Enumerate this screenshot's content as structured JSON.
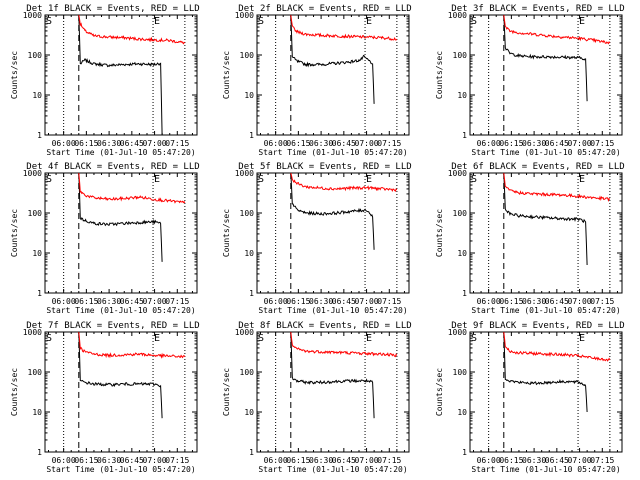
{
  "figure": {
    "panels": [
      {
        "title": "Det 1f BLACK = Events, RED = LLD"
      },
      {
        "title": "Det 2f BLACK = Events, RED = LLD"
      },
      {
        "title": "Det 3f BLACK = Events, RED = LLD"
      },
      {
        "title": "Det 4f BLACK = Events, RED = LLD"
      },
      {
        "title": "Det 5f BLACK = Events, RED = LLD"
      },
      {
        "title": "Det 6f BLACK = Events, RED = LLD"
      },
      {
        "title": "Det 7f BLACK = Events, RED = LLD"
      },
      {
        "title": "Det 8f BLACK = Events, RED = LLD"
      },
      {
        "title": "Det 9f BLACK = Events, RED = LLD"
      }
    ],
    "xlabel": "Start Time (01-Jul-10 05:47:20)",
    "ylabel": "Counts/sec",
    "xticks": [
      "06:00",
      "06:15",
      "06:30",
      "06:45",
      "07:00",
      "07:15"
    ],
    "yticks": [
      "1",
      "10",
      "100",
      "1000"
    ],
    "marker_start": "S",
    "marker_end": "E",
    "colors": {
      "events": "#000000",
      "lld": "#ff0000",
      "axes": "#000000"
    }
  },
  "chart_data": [
    {
      "type": "line",
      "title": "Det 1f BLACK = Events, RED = LLD",
      "xlabel": "Start Time (01-Jul-10 05:47:20)",
      "ylabel": "Counts/sec",
      "x_unit": "minutes after 06:00",
      "xlim": [
        -12.3,
        88
      ],
      "ylim": [
        1,
        1000
      ],
      "yscale": "log",
      "vlines_dotted": [
        0,
        59,
        80
      ],
      "vline_dashed": 10,
      "series": [
        {
          "name": "Events",
          "color": "#000000",
          "x": [
            10,
            11,
            14,
            20,
            30,
            40,
            50,
            60,
            64,
            65
          ],
          "values": [
            1000,
            60,
            75,
            60,
            55,
            58,
            60,
            58,
            62,
            1
          ]
        },
        {
          "name": "LLD",
          "color": "#ff0000",
          "x": [
            10,
            11,
            14,
            20,
            30,
            40,
            50,
            60,
            70,
            80
          ],
          "values": [
            1000,
            600,
            400,
            300,
            280,
            270,
            250,
            240,
            230,
            200
          ]
        }
      ]
    },
    {
      "type": "line",
      "title": "Det 2f BLACK = Events, RED = LLD",
      "xlabel": "Start Time (01-Jul-10 05:47:20)",
      "ylabel": "Counts/sec",
      "x_unit": "minutes after 06:00",
      "xlim": [
        -12.3,
        88
      ],
      "ylim": [
        1,
        1000
      ],
      "yscale": "log",
      "vlines_dotted": [
        0,
        59,
        80
      ],
      "vline_dashed": 10,
      "series": [
        {
          "name": "Events",
          "color": "#000000",
          "x": [
            10,
            11,
            14,
            20,
            30,
            40,
            50,
            56,
            58,
            60,
            62,
            64,
            65
          ],
          "values": [
            1000,
            90,
            70,
            58,
            58,
            62,
            68,
            75,
            90,
            80,
            70,
            60,
            6
          ]
        },
        {
          "name": "LLD",
          "color": "#ff0000",
          "x": [
            10,
            11,
            14,
            20,
            30,
            40,
            50,
            60,
            70,
            80
          ],
          "values": [
            1000,
            500,
            380,
            330,
            310,
            300,
            290,
            280,
            270,
            250
          ]
        }
      ]
    },
    {
      "type": "line",
      "title": "Det 3f BLACK = Events, RED = LLD",
      "xlabel": "Start Time (01-Jul-10 05:47:20)",
      "ylabel": "Counts/sec",
      "x_unit": "minutes after 06:00",
      "xlim": [
        -12.3,
        88
      ],
      "ylim": [
        1,
        1000
      ],
      "yscale": "log",
      "vlines_dotted": [
        0,
        59,
        80
      ],
      "vline_dashed": 10,
      "series": [
        {
          "name": "Events",
          "color": "#000000",
          "x": [
            10,
            11,
            14,
            20,
            30,
            40,
            50,
            60,
            64,
            65
          ],
          "values": [
            1000,
            150,
            110,
            95,
            90,
            90,
            88,
            85,
            80,
            7
          ]
        },
        {
          "name": "LLD",
          "color": "#ff0000",
          "x": [
            10,
            11,
            14,
            20,
            30,
            40,
            50,
            60,
            70,
            80
          ],
          "values": [
            1000,
            500,
            400,
            360,
            330,
            300,
            280,
            260,
            230,
            200
          ]
        }
      ]
    },
    {
      "type": "line",
      "title": "Det 4f BLACK = Events, RED = LLD",
      "xlabel": "Start Time (01-Jul-10 05:47:20)",
      "ylabel": "Counts/sec",
      "x_unit": "minutes after 06:00",
      "xlim": [
        -12.3,
        88
      ],
      "ylim": [
        1,
        1000
      ],
      "yscale": "log",
      "vlines_dotted": [
        0,
        59,
        80
      ],
      "vline_dashed": 10,
      "series": [
        {
          "name": "Events",
          "color": "#000000",
          "x": [
            10,
            11,
            14,
            20,
            30,
            40,
            50,
            60,
            64,
            65
          ],
          "values": [
            1000,
            75,
            65,
            55,
            52,
            55,
            58,
            60,
            55,
            6
          ]
        },
        {
          "name": "LLD",
          "color": "#ff0000",
          "x": [
            10,
            11,
            14,
            20,
            30,
            40,
            50,
            60,
            70,
            80
          ],
          "values": [
            1000,
            350,
            280,
            240,
            220,
            230,
            250,
            220,
            200,
            180
          ]
        }
      ]
    },
    {
      "type": "line",
      "title": "Det 5f BLACK = Events, RED = LLD",
      "xlabel": "Start Time (01-Jul-10 05:47:20)",
      "ylabel": "Counts/sec",
      "x_unit": "minutes after 06:00",
      "xlim": [
        -12.3,
        88
      ],
      "ylim": [
        1,
        1000
      ],
      "yscale": "log",
      "vlines_dotted": [
        0,
        59,
        80
      ],
      "vline_dashed": 10,
      "series": [
        {
          "name": "Events",
          "color": "#000000",
          "x": [
            10,
            11,
            14,
            20,
            30,
            40,
            50,
            56,
            60,
            62,
            64,
            65
          ],
          "values": [
            1000,
            180,
            120,
            100,
            95,
            100,
            110,
            115,
            120,
            100,
            80,
            12
          ]
        },
        {
          "name": "LLD",
          "color": "#ff0000",
          "x": [
            10,
            11,
            14,
            20,
            30,
            40,
            50,
            60,
            70,
            80
          ],
          "values": [
            1000,
            700,
            550,
            450,
            420,
            400,
            420,
            430,
            400,
            380
          ]
        }
      ]
    },
    {
      "type": "line",
      "title": "Det 6f BLACK = Events, RED = LLD",
      "xlabel": "Start Time (01-Jul-10 05:47:20)",
      "ylabel": "Counts/sec",
      "x_unit": "minutes after 06:00",
      "xlim": [
        -12.3,
        88
      ],
      "ylim": [
        1,
        1000
      ],
      "yscale": "log",
      "vlines_dotted": [
        0,
        59,
        80
      ],
      "vline_dashed": 10,
      "series": [
        {
          "name": "Events",
          "color": "#000000",
          "x": [
            10,
            11,
            14,
            20,
            30,
            40,
            50,
            60,
            64,
            65
          ],
          "values": [
            1000,
            120,
            95,
            85,
            80,
            75,
            72,
            70,
            60,
            5
          ]
        },
        {
          "name": "LLD",
          "color": "#ff0000",
          "x": [
            10,
            11,
            14,
            20,
            30,
            40,
            50,
            60,
            70,
            80
          ],
          "values": [
            1000,
            450,
            360,
            320,
            300,
            290,
            280,
            260,
            240,
            220
          ]
        }
      ]
    },
    {
      "type": "line",
      "title": "Det 7f BLACK = Events, RED = LLD",
      "xlabel": "Start Time (01-Jul-10 05:47:20)",
      "ylabel": "Counts/sec",
      "x_unit": "minutes after 06:00",
      "xlim": [
        -12.3,
        88
      ],
      "ylim": [
        1,
        1000
      ],
      "yscale": "log",
      "vlines_dotted": [
        0,
        59,
        80
      ],
      "vline_dashed": 10,
      "series": [
        {
          "name": "Events",
          "color": "#000000",
          "x": [
            10,
            11,
            14,
            20,
            30,
            40,
            50,
            60,
            64,
            65
          ],
          "values": [
            1000,
            60,
            55,
            50,
            48,
            50,
            50,
            50,
            45,
            7
          ]
        },
        {
          "name": "LLD",
          "color": "#ff0000",
          "x": [
            10,
            11,
            14,
            20,
            30,
            40,
            50,
            60,
            70,
            80
          ],
          "values": [
            1000,
            400,
            320,
            280,
            260,
            270,
            280,
            260,
            250,
            240
          ]
        }
      ]
    },
    {
      "type": "line",
      "title": "Det 8f BLACK = Events, RED = LLD",
      "xlabel": "Start Time (01-Jul-10 05:47:20)",
      "ylabel": "Counts/sec",
      "x_unit": "minutes after 06:00",
      "xlim": [
        -12.3,
        88
      ],
      "ylim": [
        1,
        1000
      ],
      "yscale": "log",
      "vlines_dotted": [
        0,
        59,
        80
      ],
      "vline_dashed": 10,
      "series": [
        {
          "name": "Events",
          "color": "#000000",
          "x": [
            10,
            11,
            14,
            20,
            30,
            40,
            50,
            60,
            64,
            65
          ],
          "values": [
            1000,
            70,
            60,
            55,
            55,
            58,
            60,
            60,
            55,
            7
          ]
        },
        {
          "name": "LLD",
          "color": "#ff0000",
          "x": [
            10,
            11,
            14,
            20,
            30,
            40,
            50,
            60,
            70,
            80
          ],
          "values": [
            1000,
            450,
            380,
            330,
            320,
            310,
            300,
            290,
            280,
            260
          ]
        }
      ]
    },
    {
      "type": "line",
      "title": "Det 9f BLACK = Events, RED = LLD",
      "xlabel": "Start Time (01-Jul-10 05:47:20)",
      "ylabel": "Counts/sec",
      "x_unit": "minutes after 06:00",
      "xlim": [
        -12.3,
        88
      ],
      "ylim": [
        1,
        1000
      ],
      "yscale": "log",
      "vlines_dotted": [
        0,
        59,
        80
      ],
      "vline_dashed": 10,
      "series": [
        {
          "name": "Events",
          "color": "#000000",
          "x": [
            10,
            11,
            14,
            20,
            30,
            40,
            50,
            60,
            64,
            65
          ],
          "values": [
            1000,
            70,
            60,
            55,
            52,
            55,
            58,
            55,
            45,
            10
          ]
        },
        {
          "name": "LLD",
          "color": "#ff0000",
          "x": [
            10,
            11,
            14,
            20,
            30,
            40,
            50,
            60,
            70,
            80
          ],
          "values": [
            1000,
            450,
            330,
            300,
            290,
            280,
            270,
            250,
            220,
            200
          ]
        }
      ]
    }
  ]
}
